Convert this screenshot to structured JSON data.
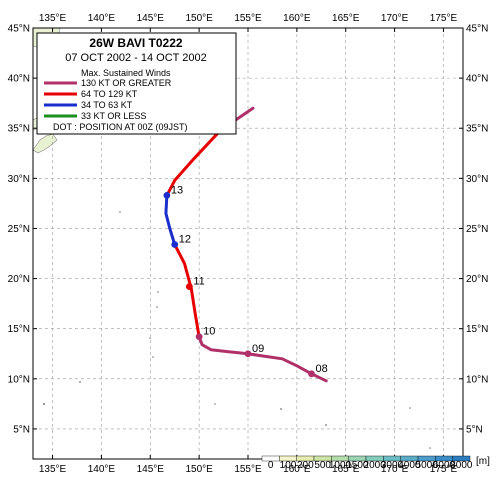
{
  "title": {
    "storm": "26W  BAVI  T0222",
    "period": "07 OCT 2002 - 14 OCT 2002"
  },
  "legend": {
    "heading": "Max. Sustained Winds",
    "items": [
      {
        "label": "130 KT OR GREATER",
        "color": "#b0306a"
      },
      {
        "label": "64  TO 129 KT",
        "color": "#e60000"
      },
      {
        "label": "34  TO 63 KT",
        "color": "#1a2ecc"
      },
      {
        "label": "33  KT OR LESS",
        "color": "#1a8f1a"
      }
    ],
    "note": "DOT : POSITION AT 00Z (09JST)"
  },
  "axes": {
    "lon_labels": [
      "135°E",
      "140°E",
      "145°E",
      "150°E",
      "155°E",
      "160°E",
      "165°E",
      "170°E",
      "175°E"
    ],
    "lat_labels": [
      "5°N",
      "10°N",
      "15°N",
      "20°N",
      "25°N",
      "30°N",
      "35°N",
      "40°N",
      "45°N"
    ],
    "lon_values": [
      135,
      140,
      145,
      150,
      155,
      160,
      165,
      170,
      175
    ],
    "lat_values": [
      5,
      10,
      15,
      20,
      25,
      30,
      35,
      40,
      45
    ],
    "lon_range": [
      133,
      177
    ],
    "lat_range": [
      2,
      45
    ],
    "grid": true
  },
  "track": [
    {
      "lon": 163.0,
      "lat": 9.8,
      "cat": 3
    },
    {
      "lon": 161.5,
      "lat": 10.5,
      "cat": 3
    },
    {
      "lon": 160.0,
      "lat": 11.3,
      "cat": 3
    },
    {
      "lon": 158.5,
      "lat": 12.0,
      "cat": 3
    },
    {
      "lon": 155.0,
      "lat": 12.5,
      "cat": 3
    },
    {
      "lon": 153.0,
      "lat": 12.7,
      "cat": 3
    },
    {
      "lon": 151.2,
      "lat": 12.9,
      "cat": 3
    },
    {
      "lon": 150.3,
      "lat": 13.4,
      "cat": 3
    },
    {
      "lon": 150.0,
      "lat": 14.2,
      "cat": 3
    },
    {
      "lon": 150.0,
      "lat": 14.2,
      "cat": 2
    },
    {
      "lon": 149.6,
      "lat": 16.5,
      "cat": 2
    },
    {
      "lon": 149.2,
      "lat": 19.0,
      "cat": 2
    },
    {
      "lon": 148.5,
      "lat": 21.5,
      "cat": 2
    },
    {
      "lon": 147.5,
      "lat": 23.4,
      "cat": 2
    },
    {
      "lon": 147.5,
      "lat": 23.4,
      "cat": 1
    },
    {
      "lon": 147.0,
      "lat": 25.0,
      "cat": 1
    },
    {
      "lon": 146.6,
      "lat": 26.5,
      "cat": 1
    },
    {
      "lon": 146.7,
      "lat": 28.3,
      "cat": 1
    },
    {
      "lon": 146.7,
      "lat": 28.3,
      "cat": 2
    },
    {
      "lon": 147.5,
      "lat": 29.8,
      "cat": 2
    },
    {
      "lon": 149.5,
      "lat": 32.0,
      "cat": 2
    },
    {
      "lon": 152.2,
      "lat": 34.8,
      "cat": 2
    },
    {
      "lon": 152.2,
      "lat": 34.8,
      "cat": 3
    },
    {
      "lon": 155.5,
      "lat": 37.0,
      "cat": 3
    }
  ],
  "daily_positions": [
    {
      "label": "08",
      "lon": 161.5,
      "lat": 10.5,
      "cat": 3
    },
    {
      "label": "09",
      "lon": 155.0,
      "lat": 12.5,
      "cat": 3
    },
    {
      "label": "10",
      "lon": 150.0,
      "lat": 14.2,
      "cat": 3
    },
    {
      "label": "11",
      "lon": 149.0,
      "lat": 19.2,
      "cat": 2
    },
    {
      "label": "12",
      "lon": 147.5,
      "lat": 23.4,
      "cat": 1
    },
    {
      "label": "13",
      "lon": 146.7,
      "lat": 28.3,
      "cat": 1
    }
  ],
  "colorbar": {
    "unit": "[m]",
    "labels": [
      "0",
      "100",
      "200",
      "500",
      "1000",
      "1500",
      "2000",
      "3000",
      "4000",
      "5000",
      "6000",
      "8000"
    ],
    "colors": [
      "#ffffff",
      "#f4f4c8",
      "#e4ecb0",
      "#cce4a4",
      "#b4dcac",
      "#9cd4b4",
      "#84ccbc",
      "#6cbcc4",
      "#5cacc8",
      "#4c9ccc",
      "#3c8cc8",
      "#2c7cc0"
    ]
  },
  "colors": {
    "frame": "#000000",
    "grid": "#9a9a9a",
    "land": "#e8f2d2",
    "land_edge": "#8a8a8a"
  }
}
